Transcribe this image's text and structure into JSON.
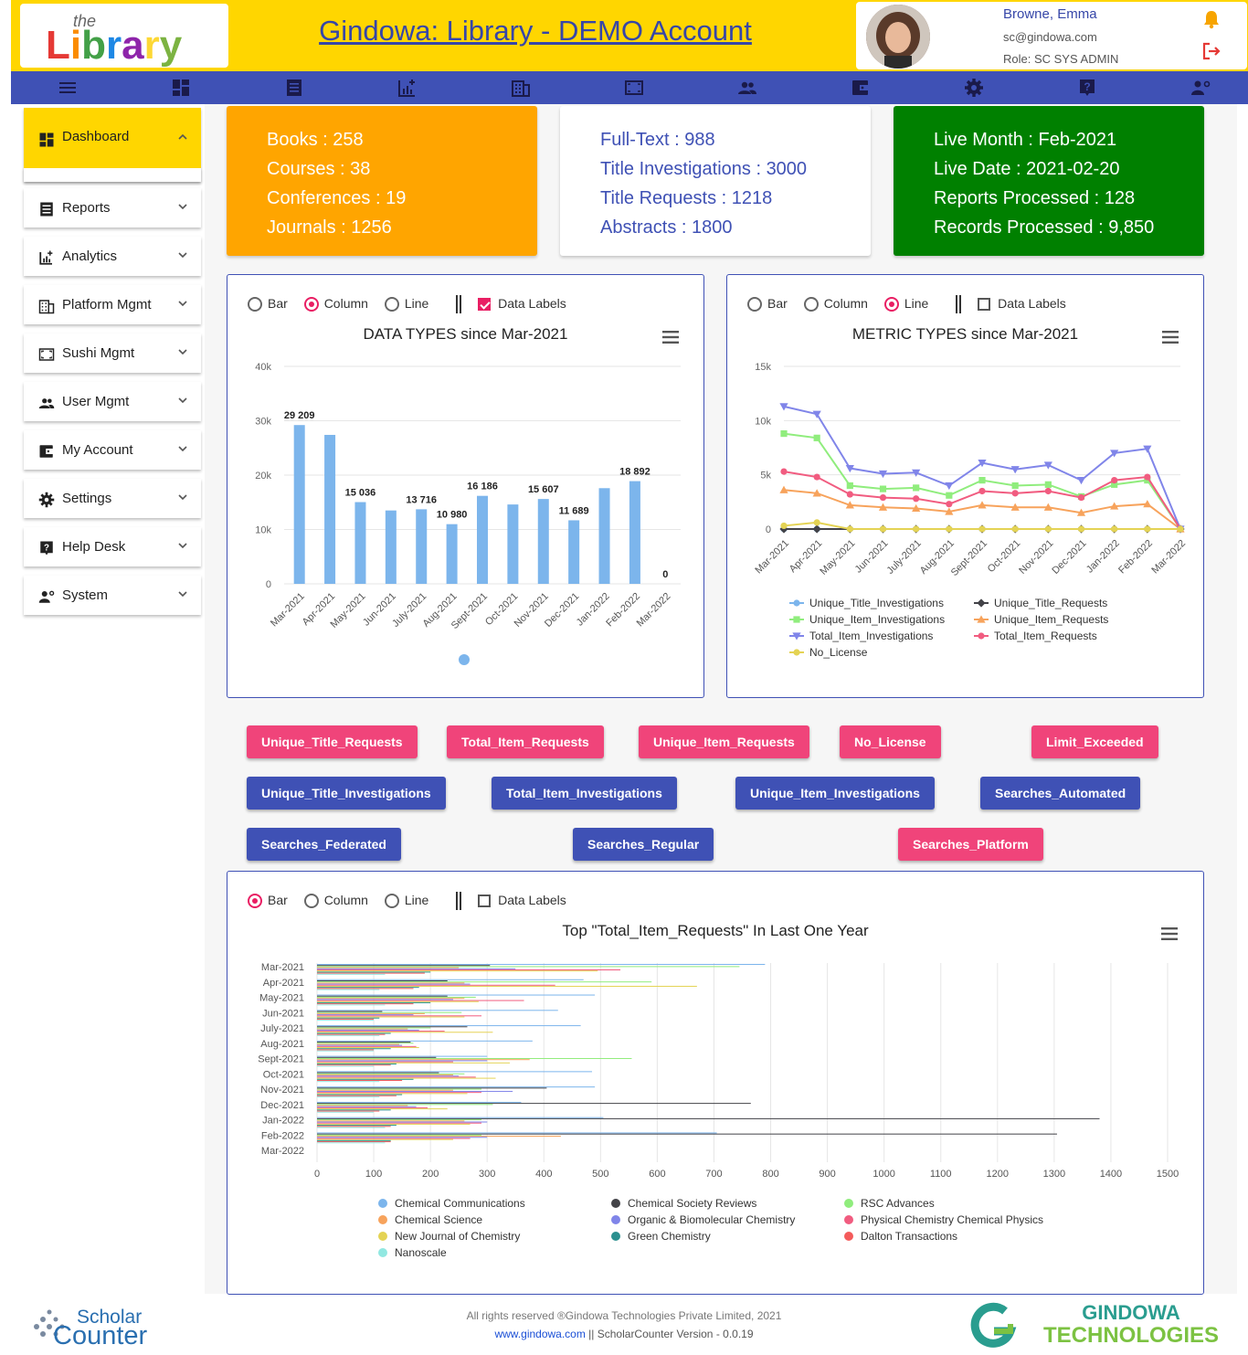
{
  "header": {
    "logo_text": "the Library",
    "title": "Gindowa: Library - DEMO Account",
    "user": {
      "name": "Browne, Emma",
      "email": "sc@gindowa.com",
      "role": "Role: SC SYS ADMIN"
    }
  },
  "navbar": {
    "icons": [
      "menu-icon",
      "dashboard-icon",
      "reports-icon",
      "analytics-icon",
      "platform-icon",
      "sushi-icon",
      "users-icon",
      "account-icon",
      "settings-icon",
      "help-icon",
      "system-icon"
    ]
  },
  "sidebar": {
    "items": [
      {
        "label": "Dashboard",
        "icon": "dashboard-icon",
        "active": true
      },
      {
        "label": "Reports",
        "icon": "reports-icon"
      },
      {
        "label": "Analytics",
        "icon": "analytics-icon"
      },
      {
        "label": "Platform Mgmt",
        "icon": "platform-icon"
      },
      {
        "label": "Sushi Mgmt",
        "icon": "sushi-icon"
      },
      {
        "label": "User Mgmt",
        "icon": "users-icon"
      },
      {
        "label": "My Account",
        "icon": "account-icon"
      },
      {
        "label": "Settings",
        "icon": "gear-icon"
      },
      {
        "label": "Help Desk",
        "icon": "help-icon"
      },
      {
        "label": "System",
        "icon": "system-icon"
      }
    ]
  },
  "stats": {
    "card1": [
      "Books : 258",
      "Courses : 38",
      "Conferences : 19",
      "Journals : 1256"
    ],
    "card2": [
      "Full-Text : 988",
      "Title Investigations : 3000",
      "Title Requests : 1218",
      "Abstracts : 1800"
    ],
    "card3": [
      "Live Month : Feb-2021",
      "Live Date : 2021-02-20",
      "Reports Processed : 128",
      "Records Processed : 9,850"
    ],
    "colors": {
      "card1": "#FFA500",
      "card2": "#ffffff",
      "card3": "#008000"
    }
  },
  "options": {
    "bar": "Bar",
    "column": "Column",
    "line": "Line",
    "data_labels": "Data Labels"
  },
  "metric_buttons": {
    "row1": [
      "Unique_Title_Requests",
      "Total_Item_Requests",
      "Unique_Item_Requests",
      "No_License",
      "Limit_Exceeded"
    ],
    "row2": [
      "Unique_Title_Investigations",
      "Total_Item_Investigations",
      "Unique_Item_Investigations",
      "Searches_Automated"
    ],
    "row3": [
      "Searches_Federated",
      "Searches_Regular",
      "Searches_Platform"
    ]
  },
  "chart_data": [
    {
      "type": "bar",
      "title": "DATA TYPES since Mar-2021",
      "categories": [
        "Mar-2021",
        "Apr-2021",
        "May-2021",
        "Jun-2021",
        "July-2021",
        "Aug-2021",
        "Sept-2021",
        "Oct-2021",
        "Nov-2021",
        "Dec-2021",
        "Jan-2022",
        "Feb-2022",
        "Mar-2022"
      ],
      "values": [
        29209,
        27400,
        15036,
        13500,
        13716,
        10980,
        16186,
        14600,
        15607,
        11689,
        17600,
        18892,
        0
      ],
      "data_labels": [
        "29 209",
        "",
        "15 036",
        "",
        "13 716",
        "10 980",
        "16 186",
        "",
        "15 607",
        "11 689",
        "",
        "18 892",
        "0"
      ],
      "ylim": [
        0,
        40000
      ],
      "yticks": [
        "0",
        "10k",
        "20k",
        "30k",
        "40k"
      ],
      "color": "#7CB5EC",
      "selected_option": "Column",
      "data_labels_on": true
    },
    {
      "type": "line",
      "title": "METRIC TYPES since Mar-2021",
      "categories": [
        "Mar-2021",
        "Apr-2021",
        "May-2021",
        "Jun-2021",
        "July-2021",
        "Aug-2021",
        "Sept-2021",
        "Oct-2021",
        "Nov-2021",
        "Dec-2021",
        "Jan-2022",
        "Feb-2022",
        "Mar-2022"
      ],
      "ylim": [
        0,
        15000
      ],
      "yticks": [
        "0",
        "5k",
        "10k",
        "15k"
      ],
      "selected_option": "Line",
      "data_labels_on": false,
      "series": [
        {
          "name": "Unique_Title_Investigations",
          "color": "#7CB5EC",
          "marker": "circle",
          "values": [
            0,
            0,
            0,
            0,
            0,
            0,
            0,
            0,
            0,
            0,
            0,
            0,
            0
          ]
        },
        {
          "name": "Unique_Title_Requests",
          "color": "#434348",
          "marker": "diamond",
          "values": [
            0,
            0,
            0,
            0,
            0,
            0,
            0,
            0,
            0,
            0,
            0,
            0,
            0
          ]
        },
        {
          "name": "Unique_Item_Investigations",
          "color": "#90ED7D",
          "marker": "square",
          "values": [
            8800,
            8400,
            4000,
            3700,
            3800,
            3100,
            4500,
            4000,
            4100,
            3000,
            4100,
            4500,
            0
          ]
        },
        {
          "name": "Unique_Item_Requests",
          "color": "#F7A35C",
          "marker": "triangle",
          "values": [
            3600,
            3300,
            2200,
            2000,
            1900,
            1600,
            2200,
            2000,
            2000,
            1500,
            2100,
            2300,
            0
          ]
        },
        {
          "name": "Total_Item_Investigations",
          "color": "#8085E9",
          "marker": "triangle-down",
          "values": [
            11300,
            10600,
            5600,
            5100,
            5200,
            4000,
            6100,
            5500,
            5900,
            4500,
            7000,
            7400,
            0
          ]
        },
        {
          "name": "Total_Item_Requests",
          "color": "#F15C80",
          "marker": "circle",
          "values": [
            5300,
            4800,
            3200,
            2900,
            2800,
            2300,
            3500,
            3300,
            3500,
            2900,
            4500,
            4800,
            0
          ]
        },
        {
          "name": "No_License",
          "color": "#E4D354",
          "marker": "circle",
          "values": [
            300,
            600,
            0,
            0,
            0,
            0,
            0,
            0,
            0,
            0,
            0,
            0,
            0
          ]
        }
      ]
    },
    {
      "type": "bar",
      "orientation": "horizontal",
      "title": "Top \"Total_Item_Requests\" In Last One Year",
      "categories": [
        "Mar-2021",
        "Apr-2021",
        "May-2021",
        "Jun-2021",
        "July-2021",
        "Aug-2021",
        "Sept-2021",
        "Oct-2021",
        "Nov-2021",
        "Dec-2021",
        "Jan-2022",
        "Feb-2022",
        "Mar-2022"
      ],
      "xlim": [
        0,
        1500
      ],
      "xticks": [
        "0",
        "100",
        "200",
        "300",
        "400",
        "500",
        "600",
        "700",
        "800",
        "900",
        "1000",
        "1100",
        "1200",
        "1300",
        "1400",
        "1500"
      ],
      "selected_option": "Bar",
      "data_labels_on": false,
      "series": [
        {
          "name": "Chemical Communications",
          "color": "#7CB5EC",
          "values": [
            790,
            470,
            490,
            425,
            465,
            380,
            300,
            485,
            490,
            360,
            505,
            705,
            0
          ]
        },
        {
          "name": "Chemical Society Reviews",
          "color": "#434348",
          "values": [
            305,
            230,
            230,
            115,
            265,
            165,
            210,
            215,
            405,
            765,
            1380,
            1305,
            0
          ]
        },
        {
          "name": "RSC Advances",
          "color": "#90ED7D",
          "values": [
            745,
            590,
            280,
            255,
            200,
            170,
            555,
            260,
            290,
            310,
            290,
            290,
            0
          ]
        },
        {
          "name": "Chemical Science",
          "color": "#F7A35C",
          "values": [
            250,
            260,
            260,
            190,
            160,
            145,
            375,
            240,
            240,
            160,
            260,
            430,
            0
          ]
        },
        {
          "name": "Organic & Biomolecular Chemistry",
          "color": "#8085E9",
          "values": [
            350,
            270,
            240,
            170,
            180,
            150,
            300,
            250,
            345,
            175,
            300,
            300,
            0
          ]
        },
        {
          "name": "Physical Chemistry Chemical Physics",
          "color": "#F15C80",
          "values": [
            535,
            420,
            365,
            290,
            225,
            175,
            240,
            280,
            290,
            195,
            290,
            270,
            0
          ]
        },
        {
          "name": "New Journal of Chemistry",
          "color": "#E4D354",
          "values": [
            495,
            670,
            285,
            260,
            310,
            180,
            340,
            315,
            265,
            230,
            270,
            240,
            0
          ]
        },
        {
          "name": "Green Chemistry",
          "color": "#2B908F",
          "values": [
            200,
            180,
            200,
            110,
            130,
            130,
            140,
            170,
            150,
            130,
            140,
            130,
            0
          ]
        },
        {
          "name": "Dalton Transactions",
          "color": "#F45B5B",
          "values": [
            190,
            170,
            170,
            100,
            120,
            100,
            130,
            150,
            140,
            110,
            130,
            130,
            0
          ]
        },
        {
          "name": "Nanoscale",
          "color": "#91E8E1",
          "values": [
            120,
            110,
            120,
            100,
            110,
            100,
            100,
            110,
            110,
            100,
            120,
            120,
            0
          ]
        }
      ]
    }
  ],
  "footer": {
    "left_logo_top": "Scholar",
    "left_logo_bottom": "Counter",
    "copyright": "All rights reserved ®Gindowa Technologies Private Limited, 2021",
    "link": "www.gindowa.com",
    "version": " || ScholarCounter Version - 0.0.19",
    "right_logo_top": "GINDOWA",
    "right_logo_bottom": "TECHNOLOGIES"
  }
}
